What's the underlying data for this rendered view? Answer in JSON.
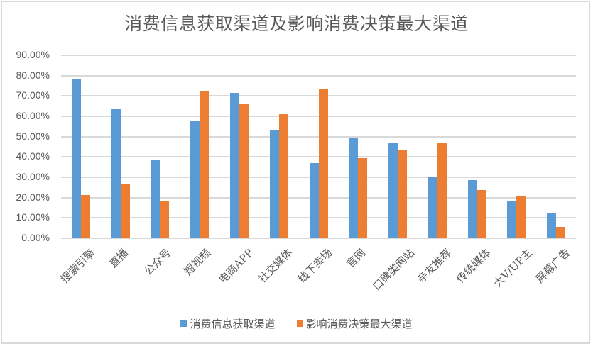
{
  "chart_data": {
    "type": "bar",
    "title": "消费信息获取渠道及影响消费决策最大渠道",
    "xlabel": "",
    "ylabel": "",
    "ylim": [
      0,
      90
    ],
    "yticks": [
      "0.00%",
      "10.00%",
      "20.00%",
      "30.00%",
      "40.00%",
      "50.00%",
      "60.00%",
      "70.00%",
      "80.00%",
      "90.00%"
    ],
    "grid": true,
    "legend_position": "bottom",
    "categories": [
      "搜索引擎",
      "直播",
      "公众号",
      "短视频",
      "电商APP",
      "社交媒体",
      "线下卖场",
      "官网",
      "口碑类网站",
      "亲友推荐",
      "传统媒体",
      "大V/UP主",
      "屏幕广告"
    ],
    "series": [
      {
        "name": "消费信息获取渠道",
        "color": "#5b9bd5",
        "values": [
          78.2,
          63.5,
          38.3,
          57.8,
          71.6,
          53.3,
          37.1,
          49.2,
          46.8,
          30.2,
          28.6,
          18.2,
          12.2
        ]
      },
      {
        "name": "影响消费决策最大渠道",
        "color": "#ed7d31",
        "values": [
          21.3,
          26.5,
          18.2,
          72.3,
          65.8,
          60.9,
          73.4,
          39.5,
          43.6,
          47.1,
          23.7,
          21.0,
          5.6
        ]
      }
    ]
  }
}
